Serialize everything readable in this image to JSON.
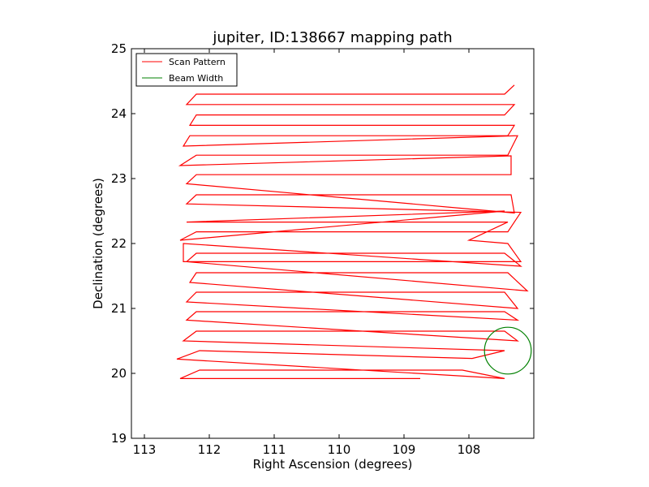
{
  "chart_data": {
    "type": "line",
    "title": "jupiter, ID:138667 mapping path",
    "xlabel": "Right Ascension (degrees)",
    "ylabel": "Declination (degrees)",
    "xlim": [
      113.2,
      107.0
    ],
    "ylim": [
      19,
      25
    ],
    "x_inverted": true,
    "x_ticks": [
      113,
      112,
      111,
      110,
      109,
      108
    ],
    "x_tick_labels": [
      "113",
      "112",
      "111",
      "110",
      "109",
      "108"
    ],
    "y_ticks": [
      19,
      20,
      21,
      22,
      23,
      24,
      25
    ],
    "y_tick_labels": [
      "19",
      "20",
      "21",
      "22",
      "23",
      "24",
      "25"
    ],
    "grid": false,
    "legend": {
      "placement": "top-left",
      "entries": [
        {
          "name": "Scan Pattern",
          "color": "#ff0000"
        },
        {
          "name": "Beam Width",
          "color": "#008000"
        }
      ]
    },
    "series": [
      {
        "name": "Scan Pattern",
        "color": "#ff0000",
        "x": [
          108.75,
          109.0,
          112.45,
          112.15,
          108.1,
          107.45,
          112.5,
          112.15,
          107.95,
          107.45,
          112.4,
          112.2,
          107.45,
          107.25,
          112.35,
          112.2,
          107.45,
          107.25,
          112.35,
          112.2,
          107.45,
          107.25,
          112.3,
          112.2,
          107.4,
          107.1,
          112.35,
          112.2,
          107.45,
          107.2,
          112.4,
          112.4,
          107.2,
          107.4,
          108.0,
          107.4,
          112.35,
          107.45,
          112.45,
          112.2,
          107.4,
          107.2,
          112.35,
          112.2,
          107.35,
          107.3,
          112.35,
          112.2,
          107.35,
          107.35,
          112.45,
          112.2,
          107.4,
          107.25,
          112.4,
          112.3,
          107.4,
          107.3,
          112.3,
          112.2,
          107.45,
          107.3,
          112.35,
          112.2,
          107.45,
          107.3
        ],
        "y": [
          19.92,
          19.92,
          19.92,
          20.05,
          20.05,
          19.92,
          20.22,
          20.35,
          20.23,
          20.35,
          20.5,
          20.65,
          20.65,
          20.5,
          20.82,
          20.95,
          20.95,
          20.82,
          21.1,
          21.25,
          21.25,
          21.0,
          21.4,
          21.55,
          21.55,
          21.27,
          21.72,
          21.85,
          21.85,
          21.65,
          22.0,
          21.72,
          21.72,
          22.0,
          22.05,
          22.33,
          22.33,
          22.5,
          22.05,
          22.18,
          22.18,
          22.48,
          22.61,
          22.75,
          22.75,
          22.47,
          22.92,
          23.06,
          23.06,
          23.35,
          23.2,
          23.36,
          23.36,
          23.66,
          23.5,
          23.66,
          23.66,
          23.82,
          23.82,
          23.98,
          23.98,
          24.14,
          24.14,
          24.3,
          24.3,
          24.44
        ]
      },
      {
        "name": "Beam Width",
        "color": "#008000",
        "center_x": 107.4,
        "center_y": 20.35,
        "radius_deg": 0.36
      }
    ]
  }
}
